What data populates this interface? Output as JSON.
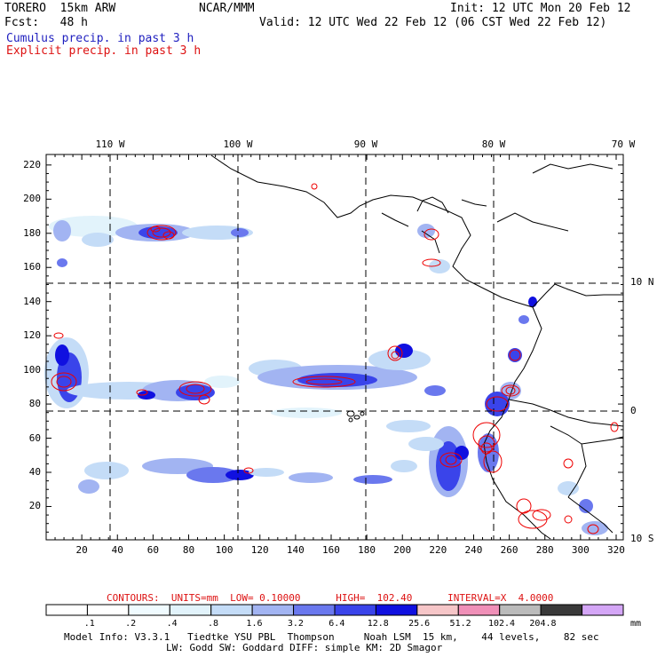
{
  "header": {
    "model": "TORERO  15km ARW",
    "center": "NCAR/MMM",
    "init": "Init: 12 UTC Mon 20 Feb 12",
    "fcst": "Fcst:   48 h",
    "valid": "Valid: 12 UTC Wed 22 Feb 12 (06 CST Wed 22 Feb 12)",
    "legend_cumulus": "Cumulus precip. in past 3 h",
    "legend_explicit": "Explicit precip. in past 3 h"
  },
  "colors": {
    "cumulus_text": "#1f1fbf",
    "explicit_text": "#dd1111",
    "contour": "#ee0000"
  },
  "map": {
    "top_lon_labels": [
      "110 W",
      "100 W",
      "90 W",
      "80 W",
      "70 W"
    ],
    "right_lat_labels": [
      "10 N",
      "0",
      "10 S"
    ],
    "left_ticks": [
      "220",
      "200",
      "180",
      "160",
      "140",
      "120",
      "100",
      "80",
      "60",
      "40",
      "20"
    ],
    "bottom_ticks": [
      "20",
      "40",
      "60",
      "80",
      "100",
      "120",
      "140",
      "160",
      "180",
      "200",
      "220",
      "240",
      "260",
      "280",
      "300",
      "320"
    ]
  },
  "contours": {
    "line": "CONTOURS:  UNITS=mm  LOW= 0.10000      HIGH=  102.40      INTERVAL=X  4.0000"
  },
  "colorbar": {
    "labels": [
      ".1",
      ".2",
      ".4",
      ".8",
      "1.6",
      "3.2",
      "6.4",
      "12.8",
      "25.6",
      "51.2",
      "102.4",
      "204.8"
    ],
    "units": "mm",
    "colors": [
      "#ffffff",
      "#ffffff",
      "#f0fbff",
      "#e2f3fb",
      "#c4dcf7",
      "#a2b4f2",
      "#6a78ee",
      "#3a44ea",
      "#1010e0",
      "#f6c6c8",
      "#f090b8",
      "#bbbbbb",
      "#393939",
      "#d4a6f6"
    ]
  },
  "footer": {
    "line1": "Model Info: V3.3.1   Tiedtke YSU PBL  Thompson     Noah LSM  15 km,    44 levels,    82 sec",
    "line2": "LW: Godd SW: Goddard DIFF: simple KM: 2D Smagor"
  }
}
